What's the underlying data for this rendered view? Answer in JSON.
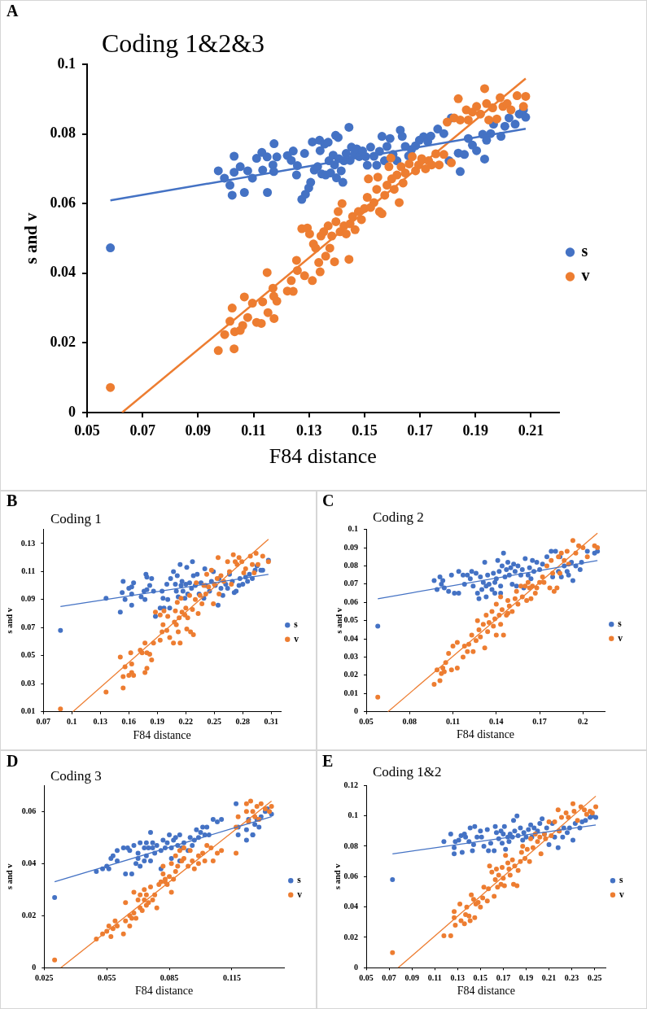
{
  "chart_data": [
    {
      "type": "scatter",
      "title": "Coding 1&2&3",
      "annotations": [
        "A"
      ],
      "xlabel": "F84 distance",
      "ylabel": "s and v",
      "xlim": [
        0.05,
        0.22
      ],
      "xticks": [
        0.05,
        0.07,
        0.09,
        0.11,
        0.13,
        0.15,
        0.17,
        0.19,
        0.21
      ],
      "ylim": [
        0,
        0.1
      ],
      "yticks": [
        0,
        0.02,
        0.04,
        0.06,
        0.08,
        0.1
      ],
      "grid": false,
      "legend": "right",
      "marker": "circle",
      "series": [
        {
          "name": "s",
          "color": "#4472c4",
          "x": [
            0.0584,
            0.0973,
            0.0995,
            0.1015,
            0.1023,
            0.103,
            0.103,
            0.1052,
            0.1067,
            0.1079,
            0.1096,
            0.1111,
            0.113,
            0.1133,
            0.1149,
            0.115,
            0.117,
            0.1173,
            0.1174,
            0.1184,
            0.1222,
            0.1236,
            0.1243,
            0.1255,
            0.1258,
            0.1274,
            0.1284,
            0.1287,
            0.1299,
            0.1306,
            0.1312,
            0.1319,
            0.1331,
            0.1338,
            0.134,
            0.1346,
            0.1356,
            0.136,
            0.1369,
            0.1372,
            0.1378,
            0.1387,
            0.1392,
            0.1396,
            0.1399,
            0.1405,
            0.1407,
            0.1416,
            0.1422,
            0.1426,
            0.1434,
            0.1444,
            0.1448,
            0.1453,
            0.1463,
            0.1472,
            0.1481,
            0.1493,
            0.1504,
            0.151,
            0.1522,
            0.1534,
            0.1544,
            0.1554,
            0.1563,
            0.1572,
            0.1581,
            0.1592,
            0.1603,
            0.1617,
            0.1629,
            0.1636,
            0.1647,
            0.1659,
            0.1669,
            0.1684,
            0.1698,
            0.1713,
            0.1728,
            0.1739,
            0.1764,
            0.1786,
            0.1805,
            0.1813,
            0.1838,
            0.1845,
            0.186,
            0.1874,
            0.1889,
            0.1904,
            0.1926,
            0.1933,
            0.194,
            0.1955,
            0.1965,
            0.1992,
            0.2006,
            0.2021,
            0.2043,
            0.2058,
            0.2073,
            0.2081
          ],
          "values": [
            0.0473,
            0.0694,
            0.0673,
            0.0653,
            0.0624,
            0.0736,
            0.069,
            0.0706,
            0.0632,
            0.0694,
            0.0673,
            0.073,
            0.0747,
            0.0696,
            0.0734,
            0.0632,
            0.0711,
            0.0692,
            0.0772,
            0.0734,
            0.0738,
            0.0724,
            0.0751,
            0.0682,
            0.0709,
            0.0612,
            0.0744,
            0.0627,
            0.0645,
            0.0661,
            0.0777,
            0.0696,
            0.0706,
            0.0782,
            0.0752,
            0.0685,
            0.0771,
            0.0682,
            0.0776,
            0.0723,
            0.0688,
            0.0739,
            0.0711,
            0.0796,
            0.0674,
            0.079,
            0.0729,
            0.0694,
            0.0661,
            0.0723,
            0.0744,
            0.0819,
            0.0724,
            0.0762,
            0.0741,
            0.0757,
            0.0735,
            0.0751,
            0.0735,
            0.071,
            0.0762,
            0.0736,
            0.071,
            0.075,
            0.0793,
            0.0723,
            0.0764,
            0.0787,
            0.0741,
            0.0723,
            0.0811,
            0.0793,
            0.0764,
            0.0737,
            0.0755,
            0.0766,
            0.0782,
            0.0792,
            0.0778,
            0.0794,
            0.0814,
            0.0801,
            0.0723,
            0.0846,
            0.0745,
            0.0692,
            0.0741,
            0.0787,
            0.0768,
            0.0752,
            0.0799,
            0.0728,
            0.0782,
            0.0801,
            0.0828,
            0.0793,
            0.0822,
            0.0846,
            0.0828,
            0.0857,
            0.0869,
            0.0848
          ]
        },
        {
          "name": "v",
          "color": "#ed7d31",
          "x": [
            0.0584,
            0.0973,
            0.0996,
            0.1015,
            0.1023,
            0.103,
            0.1032,
            0.1052,
            0.1061,
            0.1067,
            0.1079,
            0.1096,
            0.1111,
            0.1128,
            0.1133,
            0.1149,
            0.1152,
            0.117,
            0.1173,
            0.1174,
            0.1184,
            0.1222,
            0.1236,
            0.1243,
            0.1255,
            0.1258,
            0.1274,
            0.1284,
            0.1294,
            0.1302,
            0.1312,
            0.1316,
            0.1324,
            0.1335,
            0.134,
            0.1343,
            0.1353,
            0.136,
            0.1369,
            0.1375,
            0.1382,
            0.1392,
            0.1397,
            0.1405,
            0.1412,
            0.1419,
            0.1426,
            0.1434,
            0.1444,
            0.1448,
            0.1457,
            0.1466,
            0.1478,
            0.1489,
            0.15,
            0.151,
            0.1514,
            0.1522,
            0.1534,
            0.1544,
            0.1548,
            0.1554,
            0.1563,
            0.1573,
            0.1581,
            0.1588,
            0.1595,
            0.1598,
            0.1607,
            0.1617,
            0.1625,
            0.1632,
            0.1639,
            0.1647,
            0.1661,
            0.1672,
            0.1684,
            0.1695,
            0.1706,
            0.172,
            0.1731,
            0.1742,
            0.1757,
            0.1769,
            0.1786,
            0.1798,
            0.1813,
            0.1823,
            0.1838,
            0.1845,
            0.1867,
            0.1874,
            0.1889,
            0.1904,
            0.1918,
            0.1933,
            0.194,
            0.1948,
            0.1962,
            0.1977,
            0.1989,
            0.1999,
            0.2014,
            0.2028,
            0.205,
            0.2073,
            0.2081
          ],
          "values": [
            0.0072,
            0.0178,
            0.0224,
            0.0262,
            0.03,
            0.0183,
            0.0232,
            0.0236,
            0.025,
            0.0332,
            0.0273,
            0.0314,
            0.0259,
            0.0256,
            0.0318,
            0.0402,
            0.0287,
            0.0357,
            0.0334,
            0.027,
            0.032,
            0.0349,
            0.0379,
            0.0348,
            0.0437,
            0.0408,
            0.0528,
            0.0393,
            0.053,
            0.0513,
            0.0379,
            0.0484,
            0.0472,
            0.0431,
            0.0404,
            0.0507,
            0.0519,
            0.0449,
            0.0536,
            0.0472,
            0.0507,
            0.0433,
            0.0548,
            0.0577,
            0.0519,
            0.06,
            0.0536,
            0.0513,
            0.044,
            0.0542,
            0.0563,
            0.0525,
            0.0577,
            0.0554,
            0.0586,
            0.0618,
            0.0671,
            0.0589,
            0.0603,
            0.0641,
            0.0676,
            0.0577,
            0.0571,
            0.0624,
            0.0653,
            0.0706,
            0.0731,
            0.0671,
            0.0641,
            0.0682,
            0.0603,
            0.0706,
            0.0659,
            0.0688,
            0.0714,
            0.0735,
            0.0694,
            0.0711,
            0.0729,
            0.07,
            0.0723,
            0.0711,
            0.0743,
            0.0711,
            0.0741,
            0.0834,
            0.0717,
            0.0846,
            0.0901,
            0.084,
            0.0869,
            0.084,
            0.0863,
            0.0879,
            0.0857,
            0.093,
            0.0887,
            0.084,
            0.0875,
            0.0843,
            0.0904,
            0.0879,
            0.0887,
            0.0869,
            0.091,
            0.0879,
            0.0908
          ]
        },
        {
          "type": "line",
          "marker": "none",
          "color": "#4472c4",
          "x": [
            0.0584,
            0.2081
          ],
          "values": [
            0.0609,
            0.0815
          ]
        },
        {
          "type": "line",
          "marker": "none",
          "color": "#ed7d31",
          "x": [
            0.0626,
            0.2081
          ],
          "values": [
            0,
            0.0959
          ]
        }
      ]
    },
    {
      "type": "scatter",
      "title": "Coding 1",
      "annotations": [
        "B"
      ],
      "xlabel": "F84 distance",
      "ylabel": "s and v",
      "xlim": [
        0.07,
        0.32
      ],
      "xticks": [
        0.07,
        0.1,
        0.13,
        0.16,
        0.19,
        0.22,
        0.25,
        0.28,
        0.31
      ],
      "ylim": [
        0.01,
        0.14
      ],
      "yticks": [
        0.01,
        0.03,
        0.05,
        0.07,
        0.09,
        0.11,
        0.13
      ],
      "grid": false,
      "legend": "right",
      "marker": "circle",
      "series": [
        {
          "name": "s",
          "color": "#4472c4",
          "x": [
            0.088,
            0.136,
            0.151,
            0.154,
            0.153,
            0.156,
            0.16,
            0.163,
            0.163,
            0.163,
            0.165,
            0.173,
            0.176,
            0.177,
            0.178,
            0.179,
            0.179,
            0.182,
            0.184,
            0.186,
            0.188,
            0.193,
            0.195,
            0.196,
            0.197,
            0.2,
            0.201,
            0.203,
            0.204,
            0.207,
            0.209,
            0.21,
            0.211,
            0.212,
            0.214,
            0.215,
            0.216,
            0.217,
            0.219,
            0.22,
            0.221,
            0.222,
            0.224,
            0.226,
            0.227,
            0.228,
            0.23,
            0.232,
            0.234,
            0.236,
            0.239,
            0.24,
            0.241,
            0.245,
            0.247,
            0.249,
            0.251,
            0.254,
            0.255,
            0.257,
            0.259,
            0.262,
            0.264,
            0.266,
            0.269,
            0.271,
            0.273,
            0.276,
            0.277,
            0.28,
            0.283,
            0.285,
            0.287,
            0.29,
            0.293,
            0.295,
            0.299,
            0.301,
            0.307
          ],
          "values": [
            0.068,
            0.091,
            0.081,
            0.103,
            0.095,
            0.09,
            0.098,
            0.099,
            0.094,
            0.086,
            0.102,
            0.092,
            0.096,
            0.09,
            0.108,
            0.106,
            0.097,
            0.1,
            0.105,
            0.096,
            0.078,
            0.084,
            0.096,
            0.091,
            0.084,
            0.101,
            0.09,
            0.084,
            0.105,
            0.11,
            0.101,
            0.096,
            0.107,
            0.092,
            0.115,
            0.1,
            0.103,
            0.096,
            0.091,
            0.101,
            0.113,
            0.094,
            0.102,
            0.098,
            0.117,
            0.107,
            0.1,
            0.108,
            0.094,
            0.102,
            0.091,
            0.112,
            0.1,
            0.096,
            0.103,
            0.11,
            0.1,
            0.086,
            0.105,
            0.098,
            0.093,
            0.101,
            0.098,
            0.108,
            0.103,
            0.095,
            0.096,
            0.1,
            0.105,
            0.101,
            0.106,
            0.103,
            0.108,
            0.105,
            0.111,
            0.114,
            0.111,
            0.111,
            0.118
          ]
        },
        {
          "name": "v",
          "color": "#ed7d31",
          "x": [
            0.088,
            0.136,
            0.151,
            0.154,
            0.154,
            0.156,
            0.16,
            0.162,
            0.163,
            0.163,
            0.165,
            0.172,
            0.174,
            0.177,
            0.177,
            0.179,
            0.179,
            0.182,
            0.184,
            0.186,
            0.188,
            0.193,
            0.193,
            0.195,
            0.196,
            0.197,
            0.2,
            0.201,
            0.203,
            0.207,
            0.208,
            0.209,
            0.21,
            0.211,
            0.212,
            0.213,
            0.214,
            0.215,
            0.216,
            0.219,
            0.22,
            0.221,
            0.222,
            0.224,
            0.225,
            0.227,
            0.228,
            0.23,
            0.231,
            0.233,
            0.235,
            0.237,
            0.239,
            0.241,
            0.242,
            0.244,
            0.247,
            0.249,
            0.25,
            0.253,
            0.254,
            0.255,
            0.257,
            0.26,
            0.264,
            0.266,
            0.268,
            0.27,
            0.272,
            0.274,
            0.276,
            0.279,
            0.281,
            0.283,
            0.288,
            0.29,
            0.292,
            0.294,
            0.296,
            0.301,
            0.307
          ],
          "values": [
            0.012,
            0.024,
            0.049,
            0.035,
            0.027,
            0.042,
            0.036,
            0.052,
            0.044,
            0.038,
            0.036,
            0.054,
            0.052,
            0.059,
            0.038,
            0.041,
            0.052,
            0.051,
            0.047,
            0.059,
            0.081,
            0.061,
            0.079,
            0.067,
            0.072,
            0.082,
            0.068,
            0.078,
            0.063,
            0.059,
            0.074,
            0.082,
            0.072,
            0.088,
            0.067,
            0.077,
            0.059,
            0.091,
            0.081,
            0.079,
            0.084,
            0.069,
            0.077,
            0.093,
            0.067,
            0.083,
            0.065,
            0.09,
            0.102,
            0.08,
            0.093,
            0.087,
            0.1,
            0.094,
            0.108,
            0.099,
            0.111,
            0.087,
            0.101,
            0.105,
            0.12,
            0.094,
            0.107,
            0.103,
            0.117,
            0.11,
            0.101,
            0.122,
            0.117,
            0.115,
            0.12,
            0.117,
            0.109,
            0.112,
            0.121,
            0.115,
            0.109,
            0.123,
            0.115,
            0.121,
            0.117
          ]
        },
        {
          "type": "line",
          "marker": "none",
          "color": "#4472c4",
          "x": [
            0.088,
            0.307
          ],
          "values": [
            0.085,
            0.108
          ]
        },
        {
          "type": "line",
          "marker": "none",
          "color": "#ed7d31",
          "x": [
            0.101,
            0.307
          ],
          "values": [
            0.01,
            0.133
          ]
        }
      ]
    },
    {
      "type": "scatter",
      "title": "Coding 2",
      "annotations": [
        "C"
      ],
      "xlabel": "F84 distance",
      "ylabel": "s and v",
      "xlim": [
        0.05,
        0.215
      ],
      "xticks": [
        0.05,
        0.08,
        0.11,
        0.14,
        0.17,
        0.2
      ],
      "ylim": [
        0,
        0.1
      ],
      "yticks": [
        0,
        0.01,
        0.02,
        0.03,
        0.04,
        0.05,
        0.06,
        0.07,
        0.08,
        0.09,
        0.1
      ],
      "grid": false,
      "legend": "right",
      "marker": "circle",
      "series": [
        {
          "name": "s",
          "color": "#4472c4",
          "x": [
            0.058,
            0.097,
            0.099,
            0.101,
            0.102,
            0.103,
            0.104,
            0.107,
            0.109,
            0.111,
            0.114,
            0.114,
            0.117,
            0.118,
            0.12,
            0.122,
            0.123,
            0.124,
            0.126,
            0.127,
            0.128,
            0.129,
            0.13,
            0.131,
            0.132,
            0.133,
            0.133,
            0.134,
            0.135,
            0.137,
            0.138,
            0.139,
            0.139,
            0.14,
            0.141,
            0.142,
            0.143,
            0.143,
            0.144,
            0.145,
            0.146,
            0.147,
            0.148,
            0.149,
            0.15,
            0.151,
            0.152,
            0.153,
            0.154,
            0.155,
            0.157,
            0.158,
            0.159,
            0.16,
            0.162,
            0.163,
            0.164,
            0.165,
            0.166,
            0.168,
            0.17,
            0.172,
            0.175,
            0.178,
            0.179,
            0.181,
            0.183,
            0.184,
            0.185,
            0.187,
            0.189,
            0.19,
            0.192,
            0.193,
            0.195,
            0.198,
            0.199,
            0.203,
            0.208,
            0.21
          ],
          "values": [
            0.047,
            0.072,
            0.067,
            0.074,
            0.07,
            0.072,
            0.068,
            0.066,
            0.075,
            0.065,
            0.077,
            0.065,
            0.075,
            0.07,
            0.075,
            0.073,
            0.077,
            0.069,
            0.076,
            0.065,
            0.062,
            0.074,
            0.067,
            0.071,
            0.082,
            0.063,
            0.069,
            0.075,
            0.07,
            0.067,
            0.076,
            0.071,
            0.065,
            0.073,
            0.083,
            0.077,
            0.069,
            0.065,
            0.08,
            0.087,
            0.074,
            0.078,
            0.082,
            0.075,
            0.079,
            0.07,
            0.081,
            0.077,
            0.069,
            0.08,
            0.075,
            0.078,
            0.068,
            0.084,
            0.075,
            0.079,
            0.073,
            0.083,
            0.077,
            0.082,
            0.078,
            0.081,
            0.085,
            0.088,
            0.074,
            0.088,
            0.077,
            0.085,
            0.074,
            0.08,
            0.077,
            0.075,
            0.082,
            0.072,
            0.08,
            0.078,
            0.082,
            0.088,
            0.087,
            0.088
          ]
        },
        {
          "name": "v",
          "color": "#ed7d31",
          "x": [
            0.058,
            0.097,
            0.099,
            0.101,
            0.102,
            0.103,
            0.104,
            0.105,
            0.107,
            0.109,
            0.11,
            0.113,
            0.113,
            0.117,
            0.118,
            0.12,
            0.121,
            0.123,
            0.124,
            0.126,
            0.127,
            0.128,
            0.129,
            0.131,
            0.132,
            0.133,
            0.134,
            0.135,
            0.137,
            0.138,
            0.139,
            0.14,
            0.14,
            0.142,
            0.143,
            0.143,
            0.144,
            0.145,
            0.147,
            0.148,
            0.148,
            0.149,
            0.151,
            0.153,
            0.154,
            0.155,
            0.157,
            0.158,
            0.16,
            0.161,
            0.162,
            0.163,
            0.164,
            0.165,
            0.167,
            0.168,
            0.17,
            0.172,
            0.173,
            0.175,
            0.177,
            0.178,
            0.179,
            0.18,
            0.182,
            0.183,
            0.184,
            0.185,
            0.187,
            0.189,
            0.19,
            0.193,
            0.195,
            0.197,
            0.2,
            0.203,
            0.208,
            0.21
          ],
          "values": [
            0.008,
            0.015,
            0.023,
            0.017,
            0.021,
            0.024,
            0.022,
            0.027,
            0.032,
            0.023,
            0.036,
            0.038,
            0.024,
            0.03,
            0.036,
            0.033,
            0.037,
            0.042,
            0.033,
            0.039,
            0.05,
            0.045,
            0.041,
            0.048,
            0.035,
            0.053,
            0.044,
            0.049,
            0.055,
            0.047,
            0.051,
            0.059,
            0.042,
            0.053,
            0.048,
            0.063,
            0.056,
            0.042,
            0.053,
            0.061,
            0.054,
            0.058,
            0.055,
            0.062,
            0.066,
            0.059,
            0.069,
            0.063,
            0.069,
            0.061,
            0.071,
            0.068,
            0.062,
            0.069,
            0.065,
            0.068,
            0.071,
            0.074,
            0.071,
            0.08,
            0.068,
            0.083,
            0.076,
            0.066,
            0.068,
            0.085,
            0.076,
            0.087,
            0.083,
            0.088,
            0.081,
            0.094,
            0.087,
            0.091,
            0.09,
            0.085,
            0.091,
            0.09
          ]
        },
        {
          "type": "line",
          "marker": "none",
          "color": "#4472c4",
          "x": [
            0.058,
            0.21
          ],
          "values": [
            0.062,
            0.083
          ]
        },
        {
          "type": "line",
          "marker": "none",
          "color": "#ed7d31",
          "x": [
            0.065,
            0.21
          ],
          "values": [
            0,
            0.098
          ]
        }
      ]
    },
    {
      "type": "scatter",
      "title": "Coding 3",
      "annotations": [
        "D"
      ],
      "xlabel": "F84 distance",
      "ylabel": "s and v",
      "xlim": [
        0.025,
        0.14
      ],
      "xticks": [
        0.025,
        0.055,
        0.085,
        0.115
      ],
      "ylim": [
        0,
        0.07
      ],
      "yticks": [
        0,
        0.02,
        0.04,
        0.06
      ],
      "grid": false,
      "legend": "right",
      "marker": "circle",
      "series": [
        {
          "name": "s",
          "color": "#4472c4",
          "x": [
            0.03,
            0.05,
            0.053,
            0.055,
            0.056,
            0.057,
            0.058,
            0.06,
            0.06,
            0.063,
            0.064,
            0.065,
            0.066,
            0.067,
            0.068,
            0.069,
            0.07,
            0.07,
            0.071,
            0.071,
            0.073,
            0.073,
            0.074,
            0.074,
            0.075,
            0.076,
            0.076,
            0.077,
            0.077,
            0.078,
            0.079,
            0.081,
            0.081,
            0.082,
            0.083,
            0.084,
            0.085,
            0.086,
            0.086,
            0.087,
            0.088,
            0.089,
            0.09,
            0.09,
            0.091,
            0.092,
            0.094,
            0.095,
            0.096,
            0.097,
            0.098,
            0.099,
            0.1,
            0.101,
            0.102,
            0.103,
            0.104,
            0.106,
            0.108,
            0.11,
            0.117,
            0.118,
            0.118,
            0.122,
            0.122,
            0.123,
            0.125,
            0.125,
            0.126,
            0.127,
            0.128,
            0.129,
            0.131,
            0.132,
            0.134
          ],
          "values": [
            0.027,
            0.037,
            0.038,
            0.039,
            0.038,
            0.042,
            0.043,
            0.041,
            0.045,
            0.046,
            0.036,
            0.046,
            0.045,
            0.036,
            0.047,
            0.04,
            0.044,
            0.042,
            0.048,
            0.039,
            0.046,
            0.041,
            0.048,
            0.043,
            0.046,
            0.041,
            0.052,
            0.046,
            0.048,
            0.044,
            0.047,
            0.045,
            0.038,
            0.049,
            0.046,
            0.048,
            0.051,
            0.042,
            0.046,
            0.049,
            0.05,
            0.047,
            0.041,
            0.051,
            0.046,
            0.048,
            0.045,
            0.05,
            0.047,
            0.049,
            0.053,
            0.05,
            0.052,
            0.054,
            0.051,
            0.054,
            0.051,
            0.057,
            0.056,
            0.057,
            0.063,
            0.051,
            0.054,
            0.049,
            0.053,
            0.057,
            0.051,
            0.051,
            0.055,
            0.057,
            0.054,
            0.058,
            0.06,
            0.061,
            0.059
          ]
        },
        {
          "name": "v",
          "color": "#ed7d31",
          "x": [
            0.03,
            0.05,
            0.053,
            0.055,
            0.056,
            0.057,
            0.058,
            0.059,
            0.06,
            0.063,
            0.064,
            0.064,
            0.066,
            0.066,
            0.067,
            0.068,
            0.068,
            0.069,
            0.07,
            0.071,
            0.071,
            0.072,
            0.073,
            0.073,
            0.074,
            0.074,
            0.075,
            0.076,
            0.077,
            0.078,
            0.079,
            0.08,
            0.081,
            0.082,
            0.082,
            0.083,
            0.083,
            0.084,
            0.085,
            0.086,
            0.086,
            0.087,
            0.088,
            0.088,
            0.089,
            0.09,
            0.091,
            0.092,
            0.092,
            0.094,
            0.095,
            0.096,
            0.097,
            0.099,
            0.099,
            0.101,
            0.102,
            0.103,
            0.105,
            0.106,
            0.108,
            0.11,
            0.117,
            0.118,
            0.117,
            0.122,
            0.122,
            0.123,
            0.124,
            0.125,
            0.126,
            0.127,
            0.128,
            0.129,
            0.131,
            0.133,
            0.134
          ],
          "values": [
            0.003,
            0.011,
            0.013,
            0.014,
            0.016,
            0.012,
            0.015,
            0.018,
            0.016,
            0.013,
            0.025,
            0.018,
            0.02,
            0.016,
            0.019,
            0.029,
            0.021,
            0.019,
            0.026,
            0.023,
            0.028,
            0.022,
            0.026,
            0.03,
            0.024,
            0.028,
            0.025,
            0.031,
            0.026,
            0.028,
            0.023,
            0.032,
            0.033,
            0.039,
            0.036,
            0.033,
            0.034,
            0.032,
            0.035,
            0.029,
            0.04,
            0.034,
            0.043,
            0.037,
            0.039,
            0.045,
            0.041,
            0.042,
            0.046,
            0.039,
            0.045,
            0.041,
            0.038,
            0.043,
            0.04,
            0.044,
            0.041,
            0.047,
            0.046,
            0.041,
            0.044,
            0.045,
            0.044,
            0.058,
            0.054,
            0.063,
            0.06,
            0.056,
            0.064,
            0.06,
            0.058,
            0.062,
            0.057,
            0.063,
            0.061,
            0.06,
            0.062
          ]
        },
        {
          "type": "line",
          "marker": "none",
          "color": "#4472c4",
          "x": [
            0.03,
            0.134
          ],
          "values": [
            0.033,
            0.058
          ]
        },
        {
          "type": "line",
          "marker": "none",
          "color": "#ed7d31",
          "x": [
            0.033,
            0.134
          ],
          "values": [
            0,
            0.064
          ]
        }
      ]
    },
    {
      "type": "scatter",
      "title": "Coding 1&2",
      "annotations": [
        "E"
      ],
      "xlabel": "F84 distance",
      "ylabel": "s and v",
      "xlim": [
        0.05,
        0.26
      ],
      "xticks": [
        0.05,
        0.07,
        0.09,
        0.11,
        0.13,
        0.15,
        0.17,
        0.19,
        0.21,
        0.23,
        0.25
      ],
      "ylim": [
        0,
        0.12
      ],
      "yticks": [
        0,
        0.02,
        0.04,
        0.06,
        0.08,
        0.1,
        0.12
      ],
      "grid": false,
      "legend": "right",
      "marker": "circle",
      "series": [
        {
          "name": "s",
          "color": "#4472c4",
          "x": [
            0.073,
            0.118,
            0.124,
            0.127,
            0.127,
            0.128,
            0.131,
            0.133,
            0.134,
            0.136,
            0.137,
            0.14,
            0.141,
            0.143,
            0.144,
            0.145,
            0.147,
            0.15,
            0.151,
            0.153,
            0.156,
            0.157,
            0.159,
            0.162,
            0.163,
            0.164,
            0.166,
            0.168,
            0.169,
            0.17,
            0.171,
            0.172,
            0.174,
            0.175,
            0.176,
            0.178,
            0.179,
            0.18,
            0.182,
            0.183,
            0.185,
            0.187,
            0.188,
            0.19,
            0.192,
            0.194,
            0.195,
            0.197,
            0.2,
            0.202,
            0.204,
            0.206,
            0.208,
            0.21,
            0.213,
            0.215,
            0.218,
            0.219,
            0.222,
            0.223,
            0.226,
            0.228,
            0.231,
            0.233,
            0.237,
            0.239,
            0.242,
            0.246,
            0.248,
            0.251
          ],
          "values": [
            0.058,
            0.083,
            0.088,
            0.079,
            0.075,
            0.083,
            0.084,
            0.087,
            0.076,
            0.088,
            0.086,
            0.083,
            0.092,
            0.077,
            0.081,
            0.093,
            0.086,
            0.09,
            0.086,
            0.08,
            0.091,
            0.077,
            0.082,
            0.077,
            0.093,
            0.089,
            0.085,
            0.09,
            0.082,
            0.088,
            0.093,
            0.078,
            0.086,
            0.083,
            0.088,
            0.086,
            0.097,
            0.09,
            0.1,
            0.087,
            0.092,
            0.084,
            0.089,
            0.086,
            0.091,
            0.094,
            0.086,
            0.092,
            0.09,
            0.095,
            0.098,
            0.088,
            0.092,
            0.081,
            0.095,
            0.086,
            0.079,
            0.09,
            0.086,
            0.092,
            0.089,
            0.092,
            0.084,
            0.095,
            0.092,
            0.096,
            0.097,
            0.099,
            0.1,
            0.099
          ]
        },
        {
          "name": "v",
          "color": "#ed7d31",
          "x": [
            0.073,
            0.118,
            0.124,
            0.127,
            0.127,
            0.128,
            0.132,
            0.133,
            0.136,
            0.137,
            0.138,
            0.14,
            0.141,
            0.142,
            0.144,
            0.145,
            0.146,
            0.148,
            0.15,
            0.152,
            0.153,
            0.156,
            0.157,
            0.158,
            0.16,
            0.162,
            0.163,
            0.164,
            0.165,
            0.166,
            0.168,
            0.169,
            0.17,
            0.171,
            0.172,
            0.174,
            0.175,
            0.176,
            0.178,
            0.179,
            0.18,
            0.182,
            0.183,
            0.185,
            0.186,
            0.187,
            0.189,
            0.191,
            0.193,
            0.194,
            0.196,
            0.198,
            0.2,
            0.202,
            0.203,
            0.206,
            0.207,
            0.21,
            0.212,
            0.215,
            0.218,
            0.219,
            0.221,
            0.225,
            0.227,
            0.231,
            0.232,
            0.235,
            0.238,
            0.241,
            0.243,
            0.246,
            0.248,
            0.251
          ],
          "values": [
            0.01,
            0.021,
            0.021,
            0.033,
            0.037,
            0.028,
            0.042,
            0.031,
            0.029,
            0.035,
            0.04,
            0.034,
            0.031,
            0.048,
            0.045,
            0.033,
            0.042,
            0.043,
            0.04,
            0.046,
            0.053,
            0.044,
            0.052,
            0.067,
            0.063,
            0.047,
            0.058,
            0.065,
            0.053,
            0.061,
            0.055,
            0.066,
            0.059,
            0.054,
            0.074,
            0.069,
            0.065,
            0.061,
            0.071,
            0.055,
            0.067,
            0.054,
            0.064,
            0.07,
            0.076,
            0.08,
            0.072,
            0.078,
            0.07,
            0.085,
            0.079,
            0.088,
            0.083,
            0.086,
            0.075,
            0.088,
            0.085,
            0.096,
            0.087,
            0.096,
            0.104,
            0.09,
            0.099,
            0.102,
            0.099,
            0.108,
            0.103,
            0.097,
            0.106,
            0.104,
            0.101,
            0.103,
            0.102,
            0.106
          ]
        },
        {
          "type": "line",
          "marker": "none",
          "color": "#4472c4",
          "x": [
            0.073,
            0.251
          ],
          "values": [
            0.075,
            0.094
          ]
        },
        {
          "type": "line",
          "marker": "none",
          "color": "#ed7d31",
          "x": [
            0.078,
            0.251
          ],
          "values": [
            0,
            0.113
          ]
        }
      ]
    }
  ]
}
